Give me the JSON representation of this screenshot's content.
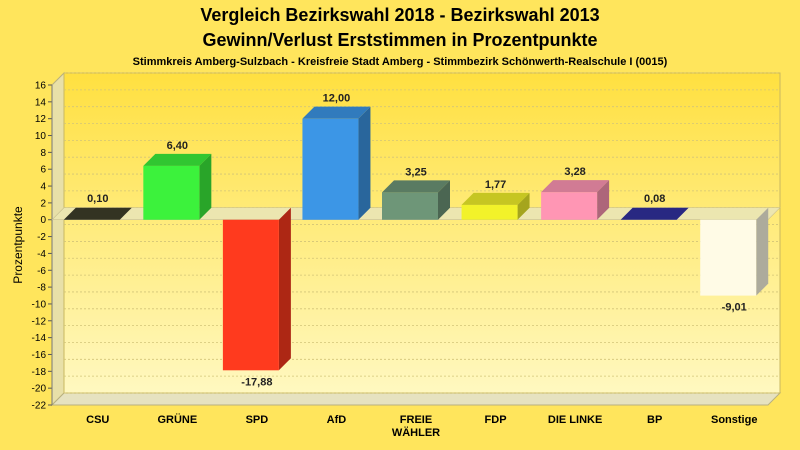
{
  "chart_data": {
    "type": "bar",
    "title": "Vergleich Bezirkswahl 2018 - Bezirkswahl 2013",
    "subtitle": "Gewinn/Verlust Erststimmen in Prozentpunkte",
    "caption": "Stimmkreis Amberg-Sulzbach - Kreisfreie Stadt Amberg - Stimmbezirk Schönwerth-Realschule I (0015)",
    "ylabel": "Prozentpunkte",
    "xlabel": "",
    "ylim": [
      -22,
      16
    ],
    "yticks": [
      "16",
      "14",
      "12",
      "10",
      "8",
      "6",
      "4",
      "2",
      "0",
      "-2",
      "-4",
      "-6",
      "-8",
      "-10",
      "-12",
      "-14",
      "-16",
      "-18",
      "-20",
      "-22"
    ],
    "grid": true,
    "categories": [
      "CSU",
      "GRÜNE",
      "SPD",
      "AfD",
      "FREIE WÄHLER",
      "FDP",
      "DIE LINKE",
      "BP",
      "Sonstige"
    ],
    "category_lines": [
      [
        "CSU"
      ],
      [
        "GRÜNE"
      ],
      [
        "SPD"
      ],
      [
        "AfD"
      ],
      [
        "FREIE",
        "WÄHLER"
      ],
      [
        "FDP"
      ],
      [
        "DIE LINKE"
      ],
      [
        "BP"
      ],
      [
        "Sonstige"
      ]
    ],
    "values": [
      0.1,
      6.4,
      -17.88,
      12.0,
      3.25,
      1.77,
      3.28,
      0.08,
      -9.01
    ],
    "value_labels": [
      "0,10",
      "6,40",
      "-17,88",
      "12,00",
      "3,25",
      "1,77",
      "3,28",
      "0,08",
      "-9,01"
    ],
    "colors": [
      "#333322",
      "#3cf23c",
      "#ff3a1e",
      "#3c96e6",
      "#6e9678",
      "#f2f22a",
      "#ff96b4",
      "#282882",
      "#fffbe6"
    ]
  }
}
